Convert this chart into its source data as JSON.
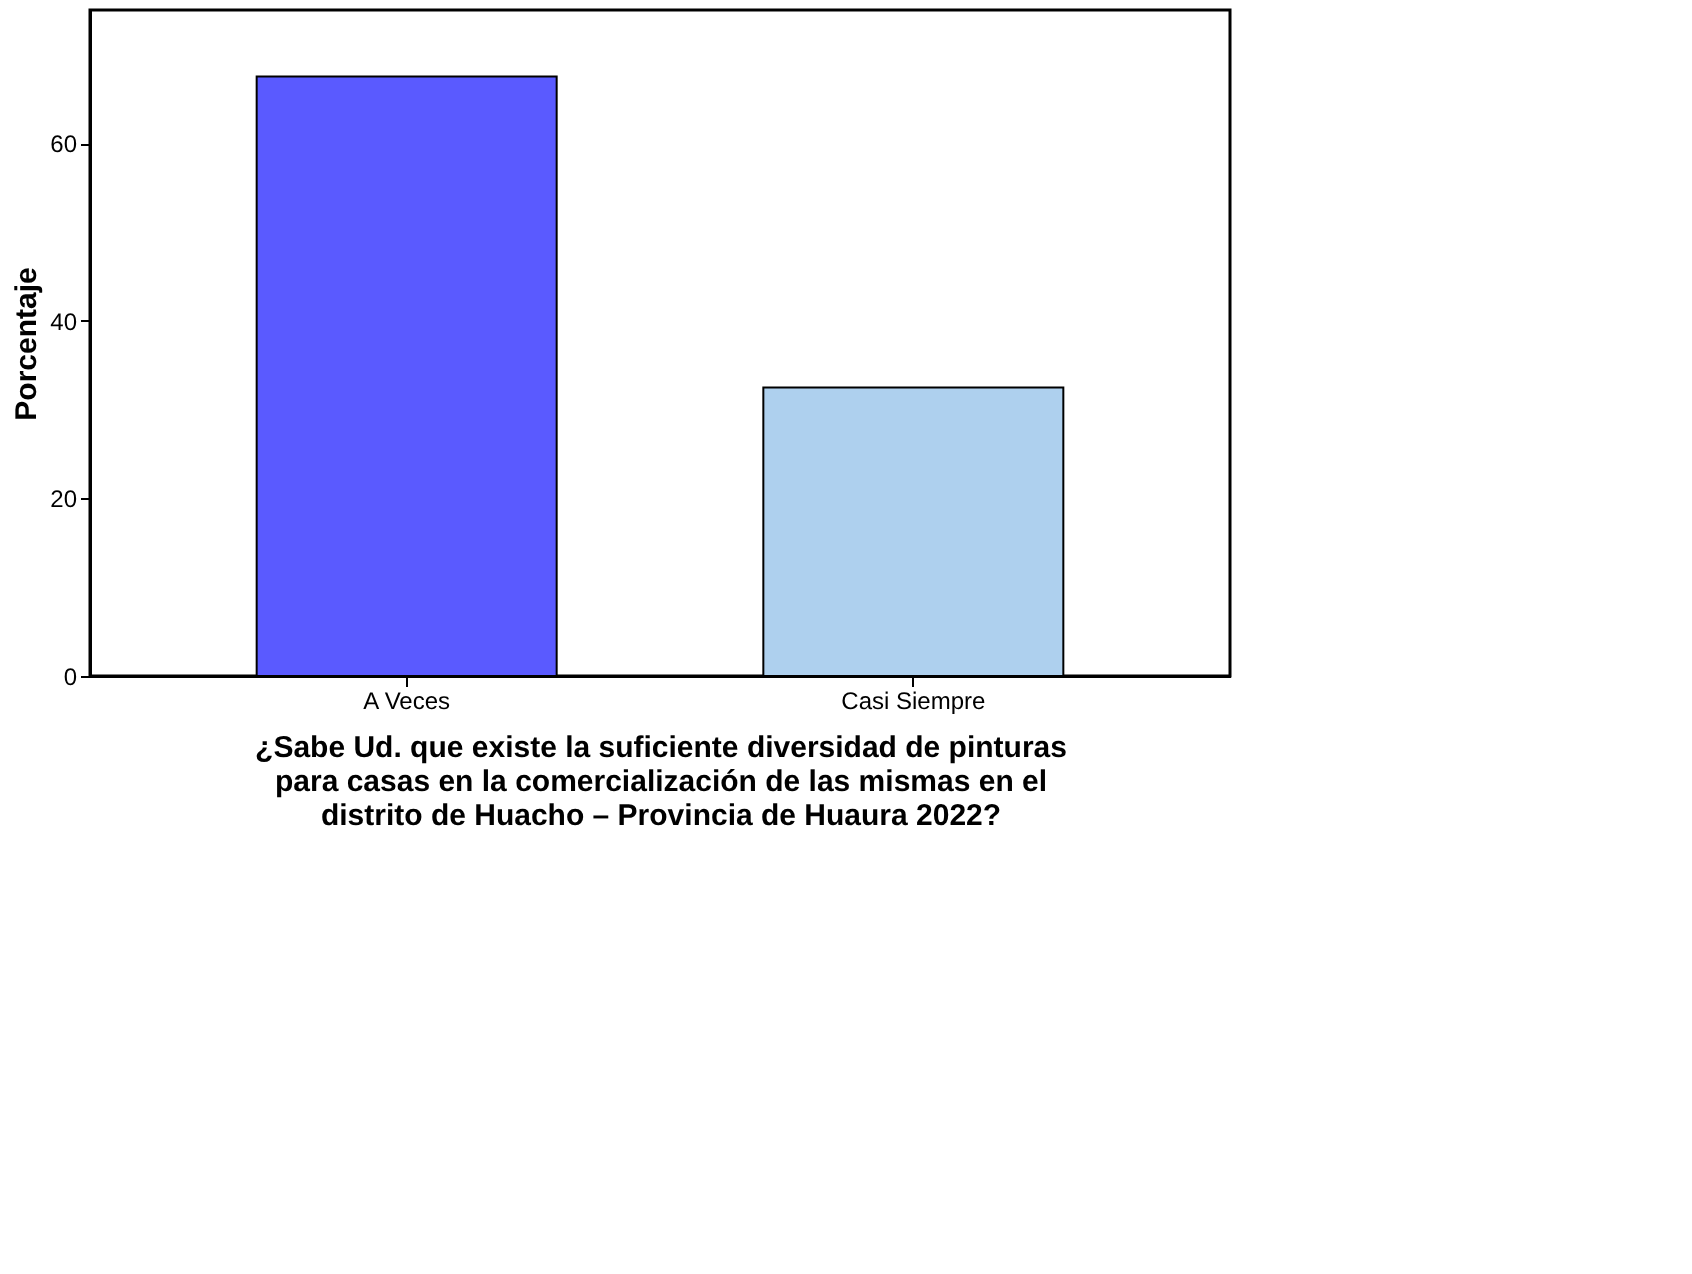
{
  "chart_data": {
    "type": "bar",
    "categories": [
      "A Veces",
      "Casi Siempre"
    ],
    "values": [
      67.5,
      32.5
    ],
    "colors": [
      "#5a5aff",
      "#aed0ee"
    ],
    "ylabel": "Porcentaje",
    "xlabel": "¿Sabe Ud. que existe la suficiente diversidad de pinturas para casas en la comercialización de las mismas en el distrito de Huacho – Provincia de Huaura 2022?",
    "ylim": [
      0,
      75
    ],
    "yticks": [
      0,
      20,
      40,
      60
    ],
    "grid": false
  }
}
